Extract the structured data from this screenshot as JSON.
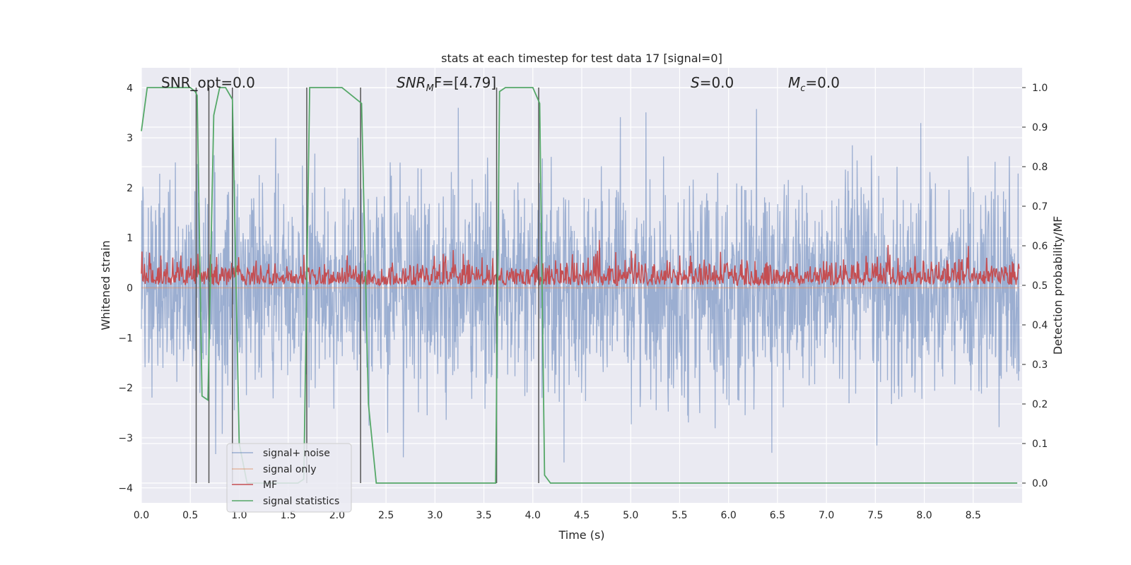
{
  "chart_data": {
    "type": "line",
    "title": "stats at each timestep for test data 17 [signal=0]",
    "xlabel": "Time (s)",
    "ylabel_left": "Whitened strain",
    "ylabel_right": "Detection probability/MF",
    "xlim": [
      0.0,
      9.0
    ],
    "ylim_left": [
      -4.3,
      4.4
    ],
    "ylim_right": [
      -0.05,
      1.05
    ],
    "x_ticks": [
      "0.0",
      "0.5",
      "1.0",
      "1.5",
      "2.0",
      "2.5",
      "3.0",
      "3.5",
      "4.0",
      "4.5",
      "5.0",
      "5.5",
      "6.0",
      "6.5",
      "7.0",
      "7.5",
      "8.0",
      "8.5"
    ],
    "y_ticks_left": [
      "4",
      "3",
      "2",
      "1",
      "0",
      "−1",
      "−2",
      "−3",
      "−4"
    ],
    "y_ticks_right": [
      "1.0",
      "0.9",
      "0.8",
      "0.7",
      "0.6",
      "0.5",
      "0.4",
      "0.3",
      "0.2",
      "0.1",
      "0.0"
    ],
    "grid": true,
    "annotations": {
      "snr_opt": "SNR_opt=0.0",
      "snr_mf_main": "SNR",
      "snr_mf_sub": "M",
      "snr_mf_rest": "F=[4.79]",
      "s_main": "S",
      "s_rest": "=0.0",
      "mc_main": "M",
      "mc_sub": "c",
      "mc_rest": "=0.0"
    },
    "legend": {
      "placement": "lower-left",
      "entries": [
        "signal+ noise",
        "signal only",
        "MF",
        "signal statistics"
      ]
    },
    "series": [
      {
        "name": "signal+ noise",
        "axis": "left",
        "color": "#4c72b0",
        "description_range": "noise roughly within [-3.5, 3.6]"
      },
      {
        "name": "signal only",
        "axis": "left",
        "color": "#dd8452",
        "values_constant": 0
      },
      {
        "name": "MF",
        "axis": "right",
        "color": "#c44e52",
        "range": [
          0.5,
          0.62
        ]
      },
      {
        "name": "signal statistics",
        "axis": "right",
        "color": "#55a868",
        "x": [
          0.0,
          0.06,
          0.5,
          0.55,
          0.57,
          0.62,
          0.68,
          0.74,
          0.8,
          0.86,
          0.93,
          1.0,
          1.08,
          1.12,
          1.18,
          1.6,
          1.66,
          1.72,
          2.05,
          2.1,
          2.25,
          2.32,
          2.4,
          3.62,
          3.66,
          3.72,
          4.0,
          4.07,
          4.12,
          4.18,
          8.95
        ],
        "y": [
          0.89,
          1.0,
          1.0,
          0.99,
          0.98,
          0.22,
          0.21,
          0.93,
          1.0,
          1.0,
          0.97,
          0.1,
          0.0,
          0.0,
          0.0,
          0.0,
          0.01,
          1.0,
          1.0,
          0.99,
          0.96,
          0.2,
          0.0,
          0.0,
          0.99,
          1.0,
          1.0,
          0.96,
          0.02,
          0.0,
          0.0
        ]
      }
    ],
    "vertical_markers_x": [
      0.56,
      0.69,
      0.93,
      1.69,
      2.24,
      3.63,
      4.06
    ]
  }
}
